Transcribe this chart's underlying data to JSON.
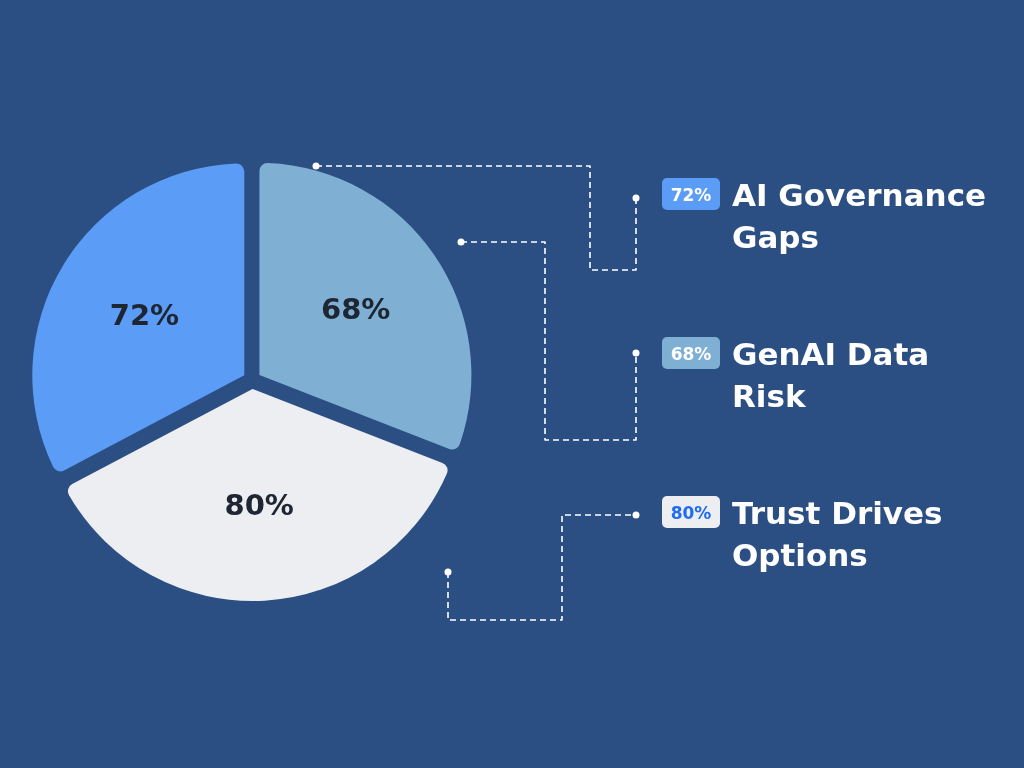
{
  "chart_data": {
    "type": "pie",
    "categories": [
      "AI Governance Gaps",
      "GenAI Data Risk",
      "Trust Drives Options"
    ],
    "values": [
      72,
      68,
      80
    ],
    "colors": [
      "#5b9cf6",
      "#7fb0d4",
      "#eceef1"
    ],
    "value_labels": [
      "72%",
      "68%",
      "80%"
    ],
    "legend": "right"
  }
}
